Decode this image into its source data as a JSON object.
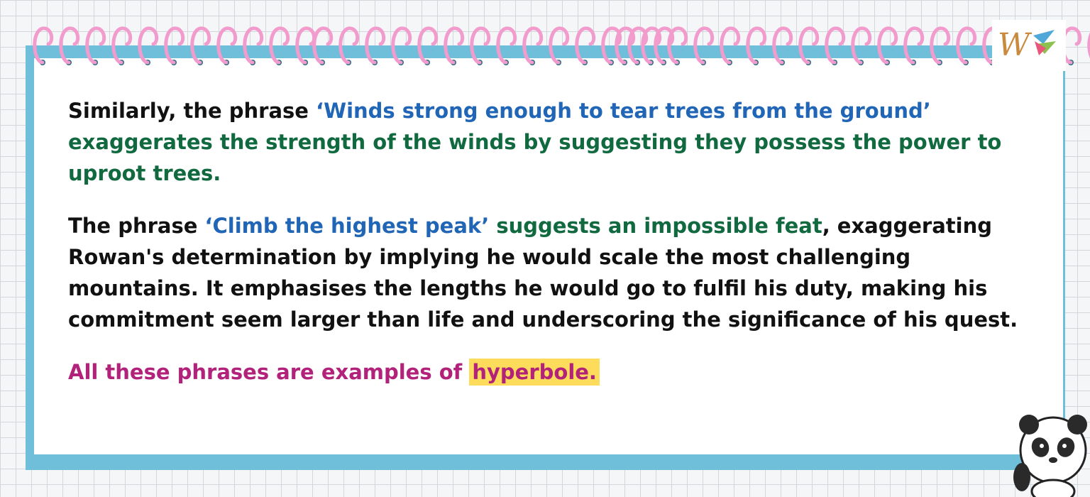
{
  "paragraphs": {
    "p1": {
      "intro": "Similarly, the phrase ",
      "quote": "‘Winds strong enough to tear trees from the ground’",
      "explanation": " exaggerates the strength of the winds by suggesting they possess the power to uproot trees."
    },
    "p2": {
      "intro": "The phrase ",
      "quote": "‘Climb the highest peak’",
      "claim": " suggests an impossible feat",
      "rest": ", exaggerating Rowan's determination by implying he would scale the most challenging mountains. It emphasises the lengths he would go to fulfil his duty, making his commitment seem larger than life and underscoring the significance of his quest."
    },
    "p3": {
      "text": "All these phrases are examples of ",
      "term": "hyperbole."
    }
  },
  "colors": {
    "quote": "#2166b6",
    "explanation": "#11693f",
    "conclusion": "#b2227a",
    "highlight": "#fddc5c",
    "card_shadow": "#6fbfda",
    "spiral": "#f29bcd"
  },
  "icons": [
    "spiral-binding",
    "logo-w-icon",
    "panda-mascot-icon"
  ]
}
